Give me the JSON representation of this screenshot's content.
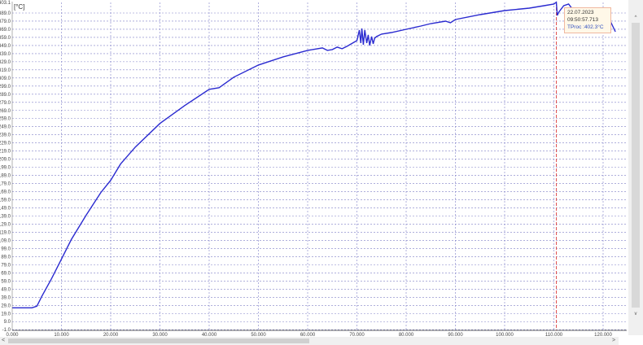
{
  "chart_data": {
    "type": "line",
    "unit_label": "[°C]",
    "y_ticks": [
      "403.1",
      "389.0",
      "379.0",
      "369.0",
      "359.0",
      "349.0",
      "339.0",
      "329.0",
      "319.0",
      "309.0",
      "299.0",
      "289.0",
      "279.0",
      "269.0",
      "259.0",
      "249.0",
      "239.0",
      "229.0",
      "219.0",
      "209.0",
      "199.0",
      "189.0",
      "179.0",
      "169.0",
      "159.0",
      "149.0",
      "139.0",
      "129.0",
      "119.0",
      "109.0",
      "99.0",
      "89.0",
      "79.0",
      "69.0",
      "59.0",
      "49.0",
      "39.0",
      "29.0",
      "19.0",
      "9.0",
      "-1.0"
    ],
    "x_ticks": [
      "0.000",
      "10.000",
      "20.000",
      "30.000",
      "40.000",
      "50.000",
      "60.000",
      "70.000",
      "80.000",
      "90.000",
      "100.000",
      "110.000",
      "120.000"
    ],
    "ylim": [
      -1.0,
      403.1
    ],
    "xlim": [
      0,
      122.5
    ],
    "grid": true,
    "line_color": "#2a2ad0",
    "cursor_color": "#e05050",
    "cursor_x": 110.5,
    "series": [
      {
        "x": [
          0,
          4,
          5,
          6,
          8,
          10,
          12,
          15,
          18,
          20,
          22,
          25,
          30,
          35,
          40,
          42,
          45,
          50,
          55,
          60,
          63,
          64,
          65,
          66,
          67,
          68,
          70,
          70.5,
          70.8,
          71,
          71.3,
          71.6,
          72,
          72.3,
          72.6,
          73,
          73.3,
          73.6,
          74,
          75,
          77,
          80,
          83,
          85,
          88,
          89,
          90,
          95,
          100,
          105,
          108,
          110,
          110.5,
          110.7,
          111,
          112,
          113,
          114,
          115,
          118,
          120,
          121,
          122.5
        ],
        "y": [
          26,
          26,
          28,
          40,
          62,
          86,
          110,
          140,
          168,
          183,
          203,
          224,
          253,
          275,
          295,
          297,
          310,
          325,
          335,
          343,
          346,
          343,
          344,
          347,
          345,
          348,
          355,
          368,
          352,
          370,
          350,
          368,
          352,
          362,
          349,
          360,
          351,
          358,
          360,
          363,
          365,
          369,
          373,
          376,
          379,
          377,
          381,
          387,
          392,
          395,
          398,
          400,
          402.3,
          386,
          390,
          398,
          400,
          392,
          392,
          392,
          392,
          385,
          366
        ]
      }
    ],
    "tooltip": {
      "date": "22.07.2023",
      "time": "09:50:57.713",
      "value": "TProc :402.3°C"
    }
  },
  "scrollbar": {
    "up": "^",
    "down": "v",
    "left": "<",
    "right": ">"
  }
}
